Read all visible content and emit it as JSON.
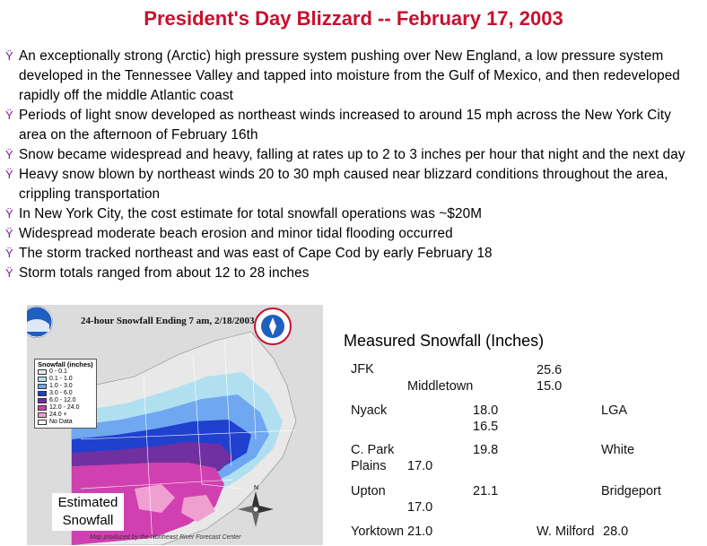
{
  "title": "President's Day Blizzard -- February 17, 2003",
  "bullet_mark": "Ÿ",
  "bullets": [
    "An exceptionally strong (Arctic) high pressure system pushing over New England, a low pressure system developed in the Tennessee Valley and tapped into moisture from the Gulf of Mexico, and then redeveloped rapidly off the middle Atlantic coast",
    "Periods of light snow developed as northeast winds increased to around 15 mph across the New York City area on the afternoon of February 16th",
    "Snow became widespread and heavy, falling at rates up to 2 to 3 inches per hour that night and the next day",
    "Heavy snow blown by northeast winds 20 to 30 mph caused near blizzard conditions throughout the area, crippling transportation",
    "In New York City, the cost estimate for total snowfall operations was ~$20M",
    "Widespread moderate beach erosion and minor tidal flooding occurred",
    "The storm tracked northeast and was east of Cape Cod by early February 18",
    "Storm totals ranged from about 12 to 28 inches"
  ],
  "map": {
    "header": "24-hour Snowfall Ending 7 am, 2/18/2003",
    "caption_line1": "Estimated",
    "caption_line2": "Snowfall",
    "credit": "Map produced by the Northeast River Forecast Center",
    "legend_title": "Snowfall (inches)",
    "legend": [
      {
        "label": "0 - 0.1",
        "color": "#e8e8e8"
      },
      {
        "label": "0.1 - 1.0",
        "color": "#b0e0f0"
      },
      {
        "label": "1.0 - 3.0",
        "color": "#6fa8f0"
      },
      {
        "label": "3.0 - 6.0",
        "color": "#2040d0"
      },
      {
        "label": "6.0 - 12.0",
        "color": "#7030a0"
      },
      {
        "label": "12.0 - 24.0",
        "color": "#d040b0"
      },
      {
        "label": "24.0 +",
        "color": "#f0a0d0"
      },
      {
        "label": "No Data",
        "color": "#ffffff"
      }
    ]
  },
  "measured": {
    "title": "Measured Snowfall (Inches)",
    "cells": {
      "jfk": "JFK",
      "middletown": "Middletown",
      "v_25_6": "25.6",
      "v_15_0": "15.0",
      "nyack": "Nyack",
      "v_18_0": "18.0",
      "v_16_5": "16.5",
      "lga": "LGA",
      "cpark1": "C. Park",
      "cpark2": "Plains",
      "v_17_0a": "17.0",
      "v_19_8": "19.8",
      "white": "White",
      "upton": "Upton",
      "v_21_1": "21.1",
      "bridgeport": "Bridgeport",
      "v_17_0b": "17.0",
      "yorktown": "Yorktown",
      "v_21_0": "21.0",
      "wmilford": "W. Milford",
      "v_28_0": "28.0"
    }
  }
}
